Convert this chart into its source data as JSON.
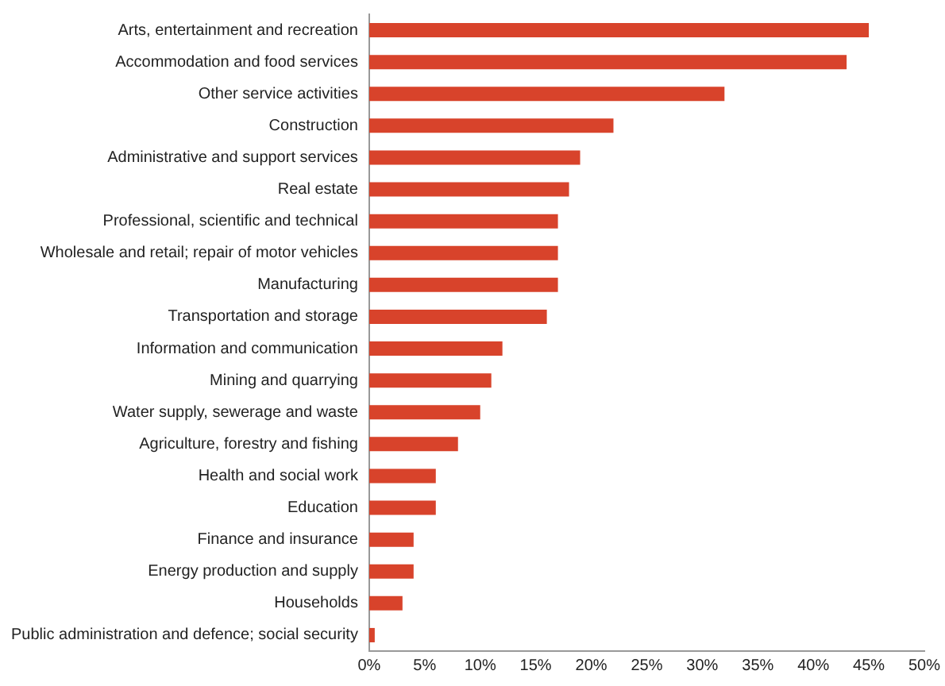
{
  "chart_data": {
    "type": "bar",
    "orientation": "horizontal",
    "categories": [
      "Arts, entertainment and recreation",
      "Accommodation and food services",
      "Other service activities",
      "Construction",
      "Administrative and support services",
      "Real estate",
      "Professional, scientific and technical",
      "Wholesale and retail; repair of motor vehicles",
      "Manufacturing",
      "Transportation and storage",
      "Information and communication",
      "Mining and quarrying",
      "Water supply, sewerage and waste",
      "Agriculture, forestry and fishing",
      "Health and social work",
      "Education",
      "Finance and insurance",
      "Energy production and supply",
      "Households",
      "Public administration and defence; social security"
    ],
    "values": [
      45,
      43,
      32,
      22,
      19,
      18,
      17,
      17,
      17,
      16,
      12,
      11,
      10,
      8,
      6,
      6,
      4,
      4,
      3,
      0.5
    ],
    "color": "#d8432b",
    "xlim": [
      0,
      50
    ],
    "xticks": [
      {
        "value": 0,
        "label": "0%"
      },
      {
        "value": 5,
        "label": "5%"
      },
      {
        "value": 10,
        "label": "10%"
      },
      {
        "value": 15,
        "label": "15%"
      },
      {
        "value": 20,
        "label": "20%"
      },
      {
        "value": 25,
        "label": "25%"
      },
      {
        "value": 30,
        "label": "30%"
      },
      {
        "value": 35,
        "label": "35%"
      },
      {
        "value": 40,
        "label": "40%"
      },
      {
        "value": 45,
        "label": "45%"
      },
      {
        "value": 50,
        "label": "50%"
      }
    ],
    "grid": false,
    "legend": false
  }
}
